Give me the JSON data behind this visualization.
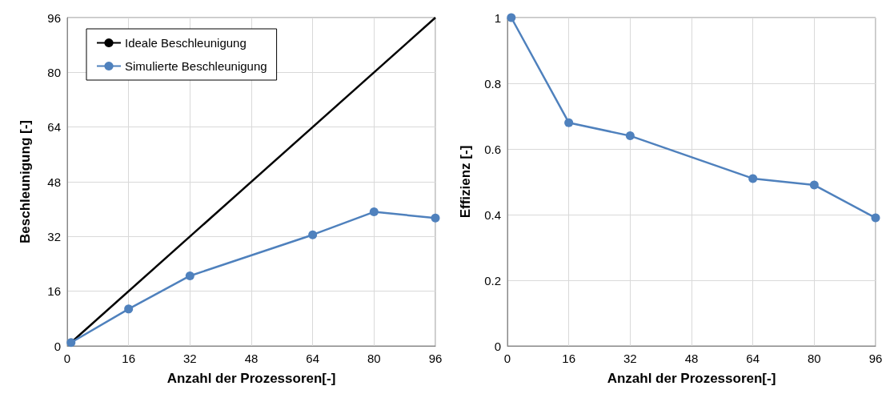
{
  "chart_data": [
    {
      "type": "line",
      "xlabel": "Anzahl der Prozessoren[-]",
      "ylabel": "Beschleunigung [-]",
      "xlim": [
        0,
        96
      ],
      "xticks": [
        0,
        16,
        32,
        48,
        64,
        80,
        96
      ],
      "ylim": [
        0,
        96
      ],
      "yticks": [
        0,
        16,
        32,
        48,
        64,
        80,
        96
      ],
      "grid": true,
      "legend": "top left",
      "series": [
        {
          "name": "Ideale Beschleunigung",
          "color": "#000000",
          "x": [
            1,
            96
          ],
          "values": [
            1,
            96
          ],
          "marker": "none"
        },
        {
          "name": "Simulierte Beschleunigung",
          "color": "#4f81bd",
          "x": [
            1,
            16,
            32,
            64,
            80,
            96
          ],
          "values": [
            1,
            10.8,
            20.5,
            32.5,
            39.2,
            37.4
          ],
          "marker": "circle"
        }
      ]
    },
    {
      "type": "line",
      "xlabel": "Anzahl der Prozessoren[-]",
      "ylabel": "Effizienz [-]",
      "xlim": [
        0,
        96
      ],
      "xticks": [
        0,
        16,
        32,
        48,
        64,
        80,
        96
      ],
      "ylim": [
        0,
        1
      ],
      "yticks": [
        0,
        0.2,
        0.4,
        0.6,
        0.8,
        1
      ],
      "grid": true,
      "legend": false,
      "marker": "circle",
      "series": [
        {
          "color": "#4f81bd",
          "x": [
            1,
            16,
            32,
            64,
            80,
            96
          ],
          "values": [
            1,
            0.68,
            0.64,
            0.51,
            0.49,
            0.39
          ]
        }
      ]
    }
  ]
}
